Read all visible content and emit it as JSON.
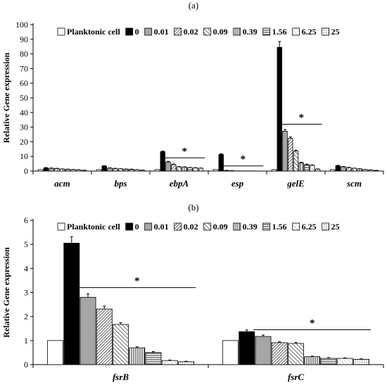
{
  "figure": {
    "panels": [
      "(a)",
      "(b)"
    ]
  },
  "legend": {
    "items": [
      "Planktonic cell",
      "0",
      "0.01",
      "0.02",
      "0.09",
      "0.39",
      "1.56",
      "6.25",
      "25"
    ]
  },
  "patterns": [
    "white",
    "black",
    "gray",
    "diag-dense",
    "diag-wide",
    "vert",
    "horiz",
    "diag-light",
    "dots"
  ],
  "chart_data": [
    {
      "type": "bar",
      "panel": "(a)",
      "categories": [
        "acm",
        "bps",
        "ebpA",
        "esp",
        "gelE",
        "scm"
      ],
      "ylabel": "Relative Gene expression",
      "ylim": [
        0,
        100
      ],
      "yticks": [
        0,
        10,
        20,
        30,
        40,
        50,
        60,
        70,
        80,
        90,
        100
      ],
      "grid": false,
      "legend_position": "top",
      "series": [
        {
          "name": "Planktonic cell",
          "values": [
            1,
            1,
            1,
            1,
            1,
            1
          ]
        },
        {
          "name": "0",
          "values": [
            2.1,
            3.4,
            13.2,
            11.3,
            84.5,
            3.6
          ]
        },
        {
          "name": "0.01",
          "values": [
            1.9,
            2.0,
            6.2,
            0.4,
            27.2,
            2.9
          ]
        },
        {
          "name": "0.02",
          "values": [
            1.7,
            1.7,
            4.5,
            0.2,
            22.3,
            2.4
          ]
        },
        {
          "name": "0.09",
          "values": [
            1.4,
            1.5,
            2.9,
            0.1,
            13.6,
            1.9
          ]
        },
        {
          "name": "0.39",
          "values": [
            1.2,
            1.3,
            2.7,
            0.1,
            5.6,
            1.5
          ]
        },
        {
          "name": "1.56",
          "values": [
            1.0,
            1.2,
            2.3,
            0.1,
            4.4,
            1.0
          ]
        },
        {
          "name": "6.25",
          "values": [
            0.8,
            0.9,
            2.1,
            0.1,
            3.9,
            0.7
          ]
        },
        {
          "name": "25",
          "values": [
            0.5,
            0.6,
            1.9,
            0.0,
            1.3,
            0.4
          ]
        }
      ],
      "error": [
        [
          0,
          0,
          0,
          0,
          0,
          0
        ],
        [
          0.3,
          0.3,
          0.5,
          0.5,
          4.0,
          0.3
        ],
        [
          0.2,
          0.2,
          0.4,
          0.1,
          1.2,
          0.2
        ],
        [
          0.2,
          0.2,
          0.3,
          0.1,
          1.0,
          0.2
        ],
        [
          0.1,
          0.1,
          0.2,
          0.0,
          0.6,
          0.1
        ],
        [
          0.1,
          0.1,
          0.2,
          0.0,
          0.4,
          0.1
        ],
        [
          0.1,
          0.1,
          0.2,
          0.0,
          0.3,
          0.1
        ],
        [
          0.1,
          0.1,
          0.2,
          0.0,
          0.3,
          0.1
        ],
        [
          0.1,
          0.1,
          0.2,
          0.0,
          0.2,
          0.1
        ]
      ],
      "significance": [
        {
          "category": "ebpA",
          "from_series": "0.01",
          "to_series": "25",
          "y": 9,
          "label": "*"
        },
        {
          "category": "esp",
          "from_series": "0.01",
          "to_series": "25",
          "y": 3.5,
          "label": "*"
        },
        {
          "category": "gelE",
          "from_series": "0.01",
          "to_series": "25",
          "y": 32,
          "label": "*"
        }
      ]
    },
    {
      "type": "bar",
      "panel": "(b)",
      "categories": [
        "fsrB",
        "fsrC"
      ],
      "ylabel": "Relative Gene expression",
      "ylim": [
        0,
        6
      ],
      "yticks": [
        0,
        1,
        2,
        3,
        4,
        5,
        6
      ],
      "grid": false,
      "legend_position": "top",
      "series": [
        {
          "name": "Planktonic cell",
          "values": [
            1,
            1
          ]
        },
        {
          "name": "0",
          "values": [
            5.05,
            1.37
          ]
        },
        {
          "name": "0.01",
          "values": [
            2.8,
            1.17
          ]
        },
        {
          "name": "0.02",
          "values": [
            2.31,
            0.91
          ]
        },
        {
          "name": "0.09",
          "values": [
            1.67,
            0.88
          ]
        },
        {
          "name": "0.39",
          "values": [
            0.7,
            0.33
          ]
        },
        {
          "name": "1.56",
          "values": [
            0.5,
            0.26
          ]
        },
        {
          "name": "6.25",
          "values": [
            0.17,
            0.26
          ]
        },
        {
          "name": "25",
          "values": [
            0.12,
            0.22
          ]
        }
      ],
      "error": [
        [
          0,
          0
        ],
        [
          0.27,
          0.07
        ],
        [
          0.14,
          0.06
        ],
        [
          0.12,
          0.04
        ],
        [
          0.07,
          0.04
        ],
        [
          0.04,
          0.02
        ],
        [
          0.04,
          0.03
        ],
        [
          0.02,
          0.02
        ],
        [
          0.02,
          0.02
        ]
      ],
      "significance": [
        {
          "category": "fsrB",
          "from_series": "0.01",
          "to_series": "25",
          "y": 3.2,
          "label": "*"
        },
        {
          "category": "fsrC",
          "from_series": "0.01",
          "to_series": "25",
          "y": 1.45,
          "label": "*"
        }
      ]
    }
  ]
}
